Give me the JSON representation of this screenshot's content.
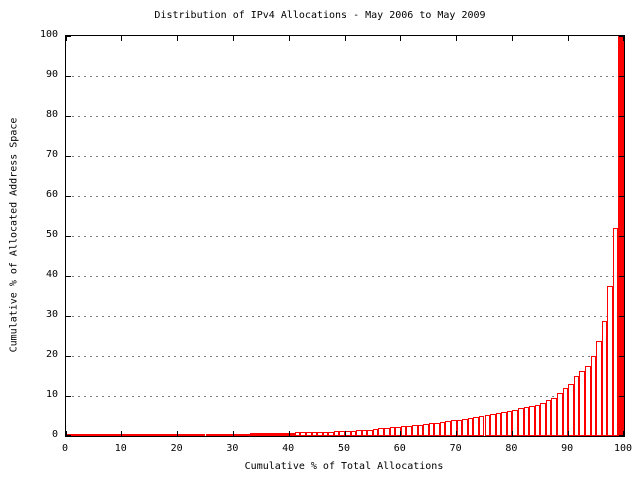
{
  "title": "Distribution of IPv4 Allocations - May 2006 to May 2009",
  "chart_data": {
    "type": "bar",
    "title": "Distribution of IPv4 Allocations - May 2006 to May 2009",
    "xlabel": "Cumulative % of Total Allocations",
    "ylabel": "Cumulative % of Allocated Address Space",
    "xlim": [
      0,
      100
    ],
    "ylim": [
      0,
      100
    ],
    "x_ticks": [
      0,
      10,
      20,
      30,
      40,
      50,
      60,
      70,
      80,
      90,
      100
    ],
    "y_ticks": [
      0,
      10,
      20,
      30,
      40,
      50,
      60,
      70,
      80,
      90,
      100
    ],
    "grid": "horizontal dotted gray lines at y=10 through y=90, ticks mirrored on top and right borders",
    "legend": "none",
    "bar_bin_width_percent": 1,
    "x_start": 1,
    "x_step": 1,
    "values": [
      0.05,
      0.06,
      0.07,
      0.08,
      0.09,
      0.1,
      0.11,
      0.12,
      0.13,
      0.15,
      0.17,
      0.19,
      0.21,
      0.23,
      0.25,
      0.27,
      0.29,
      0.31,
      0.33,
      0.35,
      0.37,
      0.39,
      0.41,
      0.43,
      0.45,
      0.47,
      0.49,
      0.51,
      0.53,
      0.55,
      0.57,
      0.6,
      0.62,
      0.65,
      0.67,
      0.7,
      0.72,
      0.75,
      0.77,
      0.8,
      0.84,
      0.88,
      0.92,
      0.96,
      1.0,
      1.04,
      1.08,
      1.12,
      1.16,
      1.2,
      1.28,
      1.36,
      1.44,
      1.52,
      1.6,
      1.74,
      1.88,
      2.02,
      2.16,
      2.3,
      2.44,
      2.58,
      2.72,
      2.86,
      3.0,
      3.18,
      3.36,
      3.54,
      3.72,
      3.9,
      4.12,
      4.34,
      4.56,
      4.78,
      5.0,
      5.26,
      5.52,
      5.78,
      6.04,
      6.3,
      6.6,
      6.9,
      7.2,
      7.5,
      7.8,
      8.25,
      9.0,
      9.5,
      10.75,
      12.0,
      13.0,
      15.0,
      16.25,
      17.5,
      20.0,
      23.75,
      28.75,
      37.5,
      52.0,
      100.0
    ]
  },
  "colors": {
    "bar_outline": "#ff0000",
    "bar_fill": "#ffffff",
    "grid": "#808080",
    "frame": "#000000",
    "text": "#000000",
    "background": "#ffffff"
  }
}
